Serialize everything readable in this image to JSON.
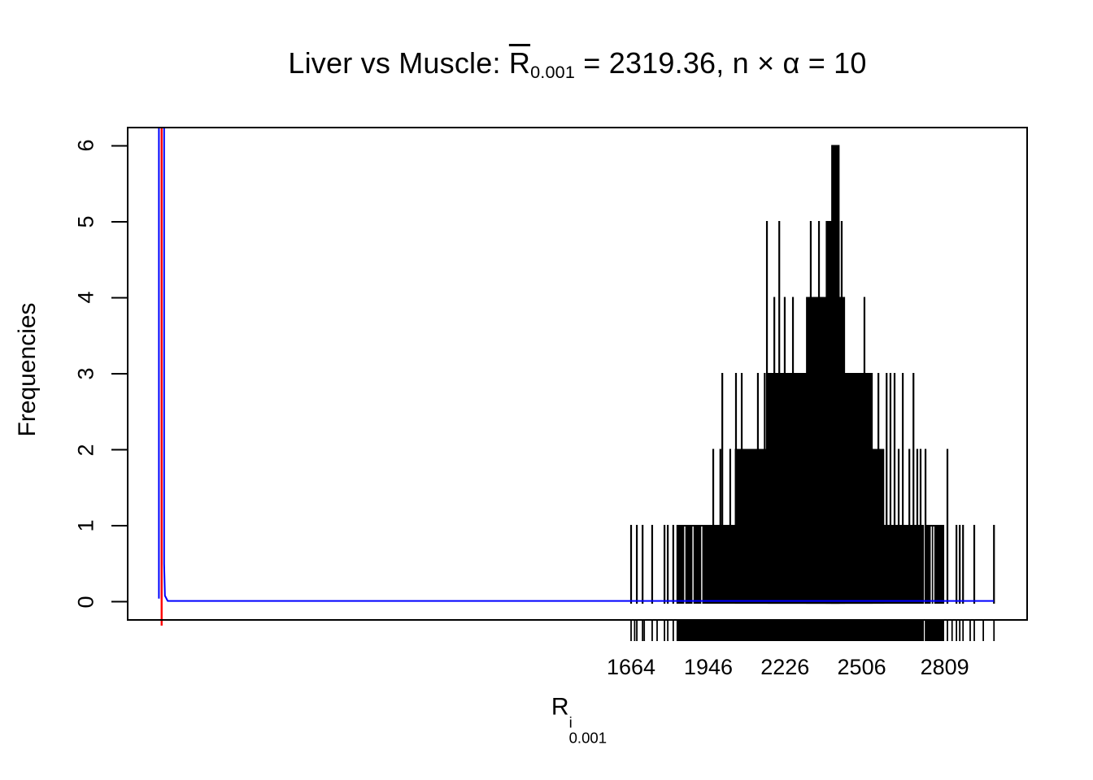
{
  "title": {
    "prefix": "Liver vs Muscle: ",
    "r_base": "R",
    "r_sub": "0.001",
    "suffix": " = 2319.36,  n × α = 10"
  },
  "y_label": "Frequencies",
  "x_label": {
    "base": "R",
    "sup": "i",
    "sub": "0.001"
  },
  "chart_data": {
    "type": "bar",
    "subtype": "vertical needle histogram (R plot type='h') with density curve and mean line",
    "title": "Liver vs Muscle: R̄0.001 = 2319.36, n × α = 10",
    "xlabel": "R^i_0.001",
    "ylabel": "Frequencies",
    "x_ticks": [
      1664,
      1946,
      2226,
      2506,
      2809
    ],
    "y_ticks": [
      0,
      1,
      2,
      3,
      4,
      5,
      6
    ],
    "xlim": [
      -174,
      3110
    ],
    "ylim": [
      -0.24,
      6.24
    ],
    "grid": "off",
    "legend": "none",
    "colors": {
      "needle": "#000000",
      "density_curve": "#0000ff",
      "mean_line": "#ff0000",
      "box": "#000000"
    },
    "mean_line_x": -50,
    "density_points": [
      [
        -60,
        0.04
      ],
      [
        -60,
        9
      ],
      [
        -41,
        9
      ],
      [
        -41,
        0.5
      ],
      [
        -38,
        0.08
      ],
      [
        -28,
        0.01
      ],
      [
        2989,
        0.01
      ]
    ],
    "solid_bands": [
      {
        "h": 1,
        "x0": 1833,
        "x1": 2730
      },
      {
        "h": 1,
        "x0": 2742,
        "x1": 2804
      },
      {
        "h": 2,
        "x0": 2046,
        "x1": 2585
      },
      {
        "h": 3,
        "x0": 2166,
        "x1": 2543
      },
      {
        "h": 4,
        "x0": 2306,
        "x1": 2442
      },
      {
        "h": 5,
        "x0": 2378,
        "x1": 2422
      },
      {
        "h": 6,
        "x0": 2398,
        "x1": 2422
      }
    ],
    "white_gaps": [
      {
        "x": 1860,
        "h": 1
      },
      {
        "x": 1890,
        "h": 1
      },
      {
        "x": 1922,
        "h": 1
      },
      {
        "x": 2760,
        "h": 1
      },
      {
        "x": 2769,
        "h": 1
      }
    ],
    "spikes": [
      [
        1664,
        1
      ],
      [
        1685,
        1
      ],
      [
        1706,
        1
      ],
      [
        1741,
        1
      ],
      [
        1786,
        1
      ],
      [
        1798,
        1
      ],
      [
        1818,
        1
      ],
      [
        1964,
        2
      ],
      [
        1990,
        2
      ],
      [
        2026,
        2
      ],
      [
        1997,
        3
      ],
      [
        2047,
        3
      ],
      [
        2068,
        3
      ],
      [
        2127,
        3
      ],
      [
        2152,
        3
      ],
      [
        2160,
        5
      ],
      [
        2187,
        4
      ],
      [
        2205,
        5
      ],
      [
        2225,
        4
      ],
      [
        2255,
        4
      ],
      [
        2320,
        5
      ],
      [
        2350,
        5
      ],
      [
        2433,
        5
      ],
      [
        2516,
        4
      ],
      [
        2567,
        3
      ],
      [
        2597,
        3
      ],
      [
        2611,
        3
      ],
      [
        2626,
        3
      ],
      [
        2656,
        3
      ],
      [
        2695,
        3
      ],
      [
        2641,
        2
      ],
      [
        2680,
        2
      ],
      [
        2709,
        2
      ],
      [
        2721,
        2
      ],
      [
        2739,
        2
      ],
      [
        2819,
        2
      ],
      [
        2852,
        1
      ],
      [
        2864,
        1
      ],
      [
        2876,
        1
      ],
      [
        2917,
        1
      ],
      [
        2989,
        1
      ]
    ],
    "rug": {
      "solid": [
        [
          1833,
          2730
        ],
        [
          2742,
          2804
        ]
      ],
      "extra_marks": [
        1677,
        1712,
        1759,
        2836,
        2902,
        2950
      ]
    }
  }
}
